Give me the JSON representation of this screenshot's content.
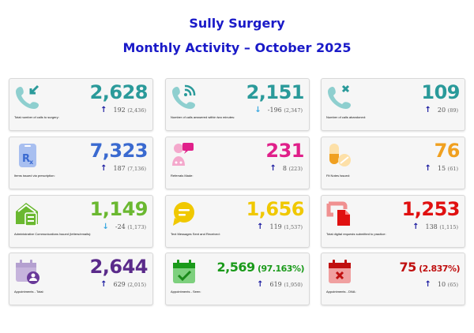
{
  "header": {
    "title": "Sully Surgery",
    "subtitle": "Monthly Activity – October 2025"
  },
  "cards": [
    {
      "icon": "phone-incoming-icon",
      "value": "2,628",
      "pct": "",
      "change": "192",
      "previous": "(2,436)",
      "direction": "up",
      "label": "Total number of calls to surgery:",
      "color": "#2a9a9a"
    },
    {
      "icon": "phone-signal-icon",
      "value": "2,151",
      "pct": "",
      "change": "-196",
      "previous": "(2,347)",
      "direction": "down",
      "label": "Number of calls answered within two minutes:",
      "color": "#2a9a9a"
    },
    {
      "icon": "phone-missed-icon",
      "value": "109",
      "pct": "",
      "change": "20",
      "previous": "(89)",
      "direction": "up",
      "label": "Number of calls abandoned:",
      "color": "#2a9a9a"
    },
    {
      "icon": "prescription-icon",
      "value": "7,323",
      "pct": "",
      "change": "187",
      "previous": "(7,136)",
      "direction": "up",
      "label": "Items issued via prescription:",
      "color": "#3a6ad0"
    },
    {
      "icon": "referral-icon",
      "value": "231",
      "pct": "",
      "change": "8",
      "previous": "(223)",
      "direction": "up",
      "label": "Referrals Made:",
      "color": "#e0208a"
    },
    {
      "icon": "pills-icon",
      "value": "76",
      "pct": "",
      "change": "15",
      "previous": "(61)",
      "direction": "up",
      "label": "Fit Notes Issued:",
      "color": "#f0a020"
    },
    {
      "icon": "house-letter-icon",
      "value": "1,149",
      "pct": "",
      "change": "-24",
      "previous": "(1,173)",
      "direction": "down",
      "label": "Administrative Communications Issued (letters/emails):",
      "color": "#6ab830"
    },
    {
      "icon": "chat-bubble-icon",
      "value": "1,656",
      "pct": "",
      "change": "119",
      "previous": "(1,537)",
      "direction": "up",
      "label": "Text Messages Sent and Received:",
      "color": "#f0c800"
    },
    {
      "icon": "digital-request-icon",
      "value": "1,253",
      "pct": "",
      "change": "138",
      "previous": "(1,115)",
      "direction": "up",
      "label": "Total digital requests submitted to practice:",
      "color": "#e01010"
    },
    {
      "icon": "calendar-user-icon",
      "value": "2,644",
      "pct": "",
      "change": "629",
      "previous": "(2,015)",
      "direction": "up",
      "label": "Appointments - Total:",
      "color": "#5a2a8a"
    },
    {
      "icon": "calendar-check-icon",
      "value": "2,569",
      "pct": "(97.163%)",
      "change": "619",
      "previous": "(1,950)",
      "direction": "up",
      "label": "Appointments - Seen:",
      "color": "#1a9a1a"
    },
    {
      "icon": "calendar-x-icon",
      "value": "75",
      "pct": "(2.837%)",
      "change": "10",
      "previous": "(65)",
      "direction": "up",
      "label": "Appointments - DNA:",
      "color": "#c01010"
    }
  ],
  "arrows": {
    "up": "↑",
    "down": "↓"
  }
}
